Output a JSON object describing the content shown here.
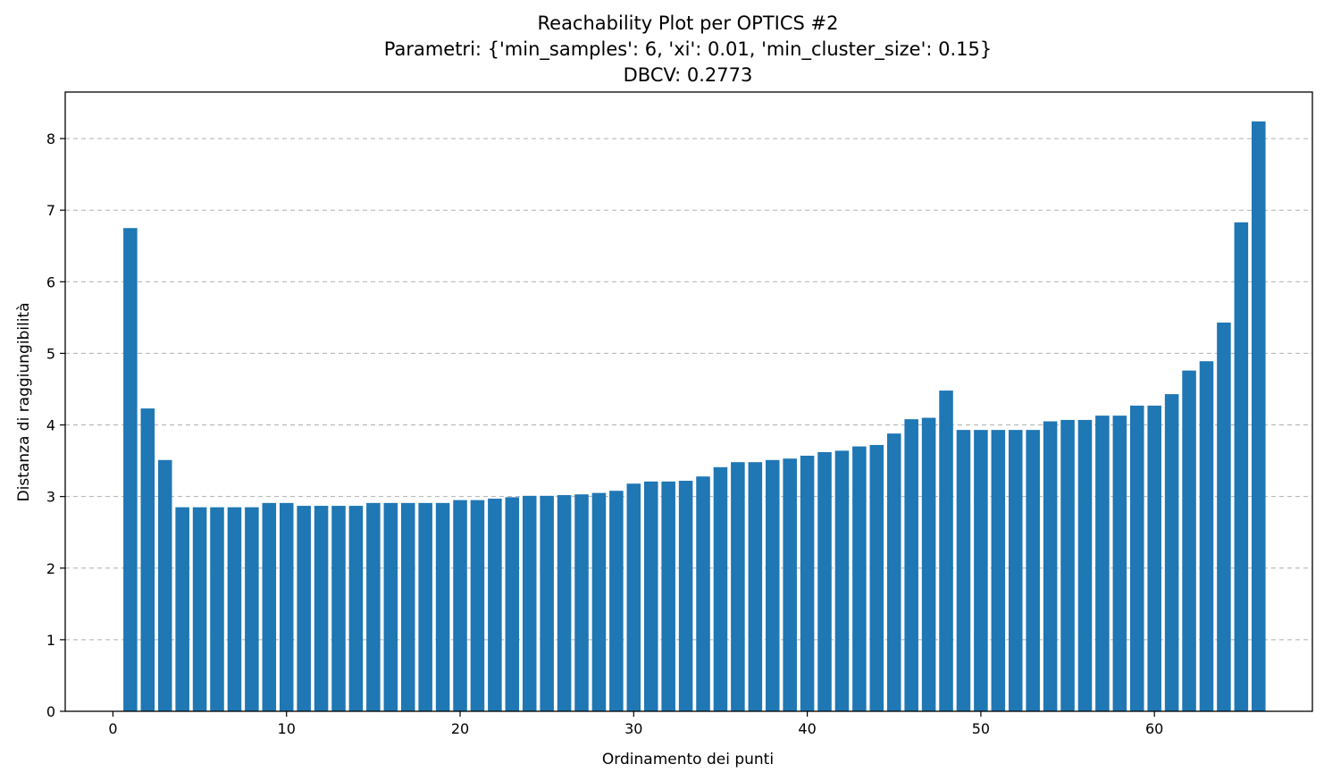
{
  "chart_data": {
    "type": "bar",
    "title_lines": [
      "Reachability Plot per OPTICS #2",
      "Parametri: {'min_samples': 6, 'xi': 0.01, 'min_cluster_size': 0.15}",
      "DBCV: 0.2773"
    ],
    "xlabel": "Ordinamento dei punti",
    "ylabel": "Distanza di raggiungibilità",
    "x_tick_labels": [
      "0",
      "10",
      "20",
      "30",
      "40",
      "50",
      "60"
    ],
    "y_tick_labels": [
      "0",
      "1",
      "2",
      "3",
      "4",
      "5",
      "6",
      "7",
      "8"
    ],
    "xlim": [
      -2.75,
      69.1
    ],
    "ylim": [
      0,
      8.65
    ],
    "grid": "y-dashed",
    "bar_color": "#1f77b4",
    "x": [
      1,
      2,
      3,
      4,
      5,
      6,
      7,
      8,
      9,
      10,
      11,
      12,
      13,
      14,
      15,
      16,
      17,
      18,
      19,
      20,
      21,
      22,
      23,
      24,
      25,
      26,
      27,
      28,
      29,
      30,
      31,
      32,
      33,
      34,
      35,
      36,
      37,
      38,
      39,
      40,
      41,
      42,
      43,
      44,
      45,
      46,
      47,
      48,
      49,
      50,
      51,
      52,
      53,
      54,
      55,
      56,
      57,
      58,
      59,
      60,
      61,
      62,
      63,
      64,
      65,
      66
    ],
    "values": [
      6.75,
      4.23,
      3.51,
      2.85,
      2.85,
      2.85,
      2.85,
      2.85,
      2.91,
      2.91,
      2.87,
      2.87,
      2.87,
      2.87,
      2.91,
      2.91,
      2.91,
      2.91,
      2.91,
      2.95,
      2.95,
      2.97,
      2.99,
      3.01,
      3.01,
      3.02,
      3.03,
      3.05,
      3.08,
      3.18,
      3.21,
      3.21,
      3.22,
      3.28,
      3.41,
      3.48,
      3.48,
      3.51,
      3.53,
      3.57,
      3.62,
      3.64,
      3.7,
      3.72,
      3.88,
      4.08,
      4.1,
      4.48,
      3.93,
      3.93,
      3.93,
      3.93,
      3.93,
      4.05,
      4.07,
      4.07,
      4.13,
      4.13,
      4.27,
      4.27,
      4.43,
      4.76,
      4.89,
      5.43,
      6.83,
      8.24
    ]
  }
}
